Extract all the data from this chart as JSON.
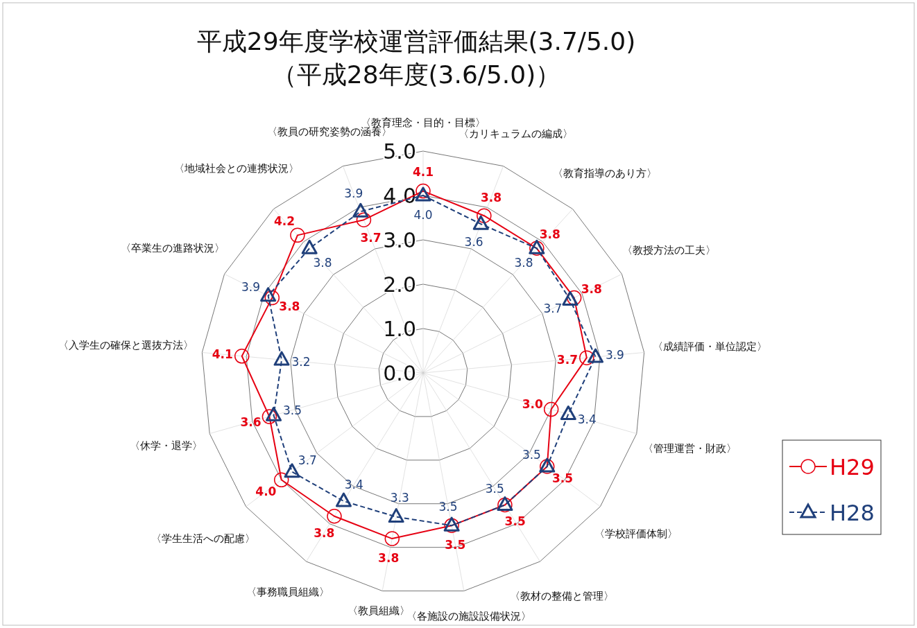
{
  "chart_data": {
    "type": "radar",
    "title": "平成29年度学校運営評価結果(3.7/5.0)",
    "subtitle": "（平成28年度(3.6/5.0)）",
    "categories": [
      "〈教育理念・目的・目標〉",
      "〈カリキュラムの編成〉",
      "〈教育指導のあり方〉",
      "〈教授方法の工夫〉",
      "〈成績評価・単位認定〉",
      "〈管理運営・財政〉",
      "〈学校評価体制〉",
      "〈教材の整備と管理〉",
      "〈各施設の施設設備状況〉",
      "〈教員組織〉",
      "〈事務職員組織〉",
      "〈学生生活への配慮〉",
      "〈休学・退学〉",
      "〈入学生の確保と選抜方法〉",
      "〈卒業生の進路状況〉",
      "〈地域社会との連携状況〉",
      "〈教員の研究姿勢の涵養〉"
    ],
    "series": [
      {
        "name": "H29",
        "color": "#e60012",
        "marker": "circle",
        "line_style": "solid",
        "values": [
          4.1,
          3.8,
          3.8,
          3.8,
          3.7,
          3.0,
          3.5,
          3.5,
          3.5,
          3.8,
          3.8,
          4.0,
          3.6,
          4.1,
          3.8,
          4.2,
          3.7
        ],
        "value_labels": [
          "4.1",
          "3.8",
          "3.8",
          "3.8",
          "3.7",
          "3.0",
          "3.5",
          "3.5",
          "3.5",
          "3.8",
          "3.8",
          "4.0",
          "3.6",
          "4.1",
          "3.8",
          "4.2",
          "3.7"
        ]
      },
      {
        "name": "H28",
        "color": "#1f3f7a",
        "marker": "triangle",
        "line_style": "dashed",
        "values": [
          4.0,
          3.6,
          3.8,
          3.7,
          3.9,
          3.4,
          3.5,
          3.5,
          3.5,
          3.3,
          3.4,
          3.7,
          3.5,
          3.2,
          3.9,
          3.8,
          3.9
        ],
        "value_labels": [
          "4.0",
          "3.6",
          "3.8",
          "3.7",
          "3.9",
          "3.4",
          "3.5",
          "3.5",
          "3.5",
          "3.3",
          "3.4",
          "3.7",
          "3.5",
          "3.2",
          "3.9",
          "3.8",
          "3.9"
        ]
      }
    ],
    "ylim": [
      0,
      5
    ],
    "yticks": [
      {
        "value": 0,
        "label": "0.0"
      },
      {
        "value": 1,
        "label": "1.0"
      },
      {
        "value": 2,
        "label": "2.0"
      },
      {
        "value": 3,
        "label": "3.0"
      },
      {
        "value": 4,
        "label": "4.0"
      },
      {
        "value": 5,
        "label": "5.0"
      }
    ],
    "legend": "right"
  }
}
